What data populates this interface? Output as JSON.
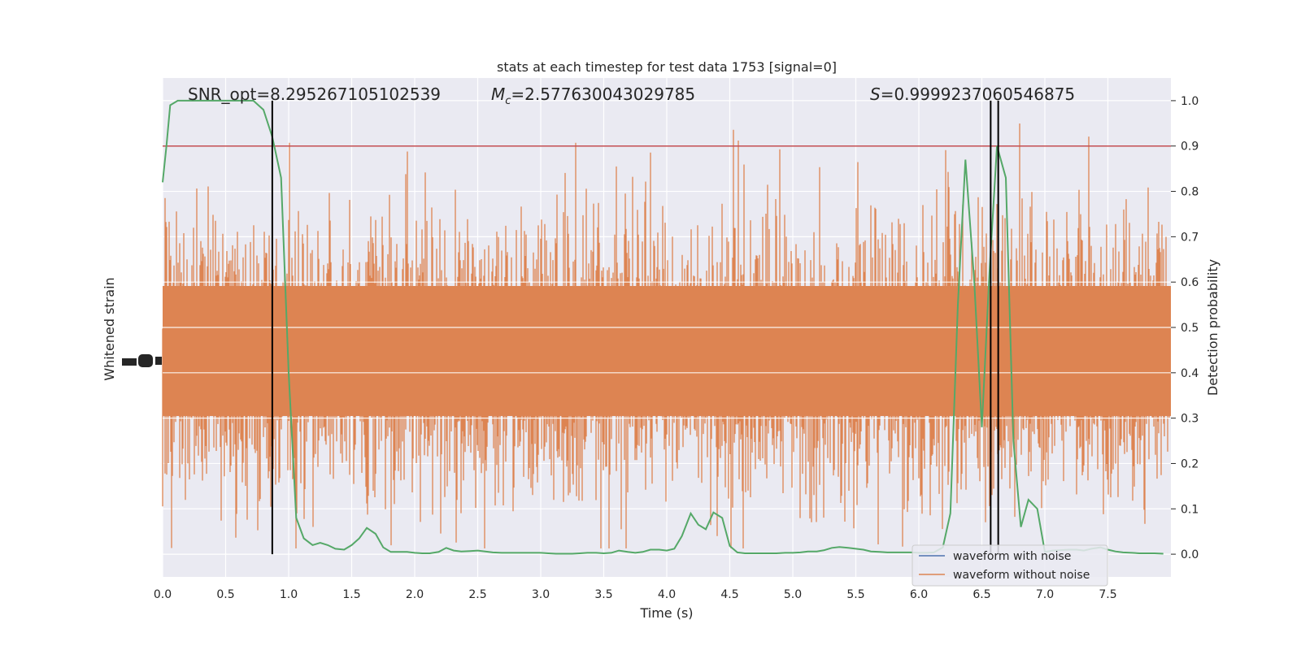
{
  "chart_data": {
    "type": "line",
    "title": "stats at each timestep for test data 1753 [signal=0]",
    "xlabel": "Time (s)",
    "ylabel_left": "Whitened strain",
    "ylabel_right": "Detection probability",
    "xlim": [
      0.0,
      8.0
    ],
    "ylim_right": [
      -0.05,
      1.05
    ],
    "x_ticks": [
      "0.0",
      "0.5",
      "1.0",
      "1.5",
      "2.0",
      "2.5",
      "3.0",
      "3.5",
      "4.0",
      "4.5",
      "5.0",
      "5.5",
      "6.0",
      "6.5",
      "7.0",
      "7.5"
    ],
    "y_ticks_right": [
      "0.0",
      "0.1",
      "0.2",
      "0.3",
      "0.4",
      "0.5",
      "0.6",
      "0.7",
      "0.8",
      "0.9",
      "1.0"
    ],
    "grid": true,
    "legend_position": "lower-right",
    "annotations": {
      "snr": "SNR_opt=8.295267105102539",
      "mc_symbol": "M",
      "mc_subscript": "c",
      "mc_value": "=2.577630043029785",
      "s_symbol": "S",
      "s_value": "=0.9999237060546875"
    },
    "threshold": 0.9,
    "vertical_lines_x": [
      0.87,
      6.57,
      6.63
    ],
    "series": [
      {
        "name": "waveform with noise",
        "color": "#4c72b0"
      },
      {
        "name": "waveform without noise",
        "color": "#dd8452"
      },
      {
        "name": "",
        "color": "#55a868",
        "x": [
          0.0,
          0.03,
          0.06,
          0.12,
          0.18,
          0.25,
          0.35,
          0.45,
          0.55,
          0.65,
          0.72,
          0.8,
          0.87,
          0.94,
          1.0,
          1.06,
          1.12,
          1.19,
          1.25,
          1.31,
          1.37,
          1.44,
          1.5,
          1.56,
          1.62,
          1.69,
          1.75,
          1.81,
          1.87,
          1.94,
          2.0,
          2.06,
          2.12,
          2.19,
          2.25,
          2.31,
          2.37,
          2.44,
          2.5,
          2.56,
          2.62,
          2.69,
          2.75,
          2.81,
          2.87,
          2.94,
          3.0,
          3.06,
          3.12,
          3.19,
          3.25,
          3.31,
          3.37,
          3.44,
          3.5,
          3.56,
          3.62,
          3.69,
          3.75,
          3.81,
          3.87,
          3.94,
          4.0,
          4.06,
          4.12,
          4.19,
          4.25,
          4.31,
          4.37,
          4.44,
          4.5,
          4.56,
          4.62,
          4.69,
          4.75,
          4.81,
          4.87,
          4.94,
          5.0,
          5.06,
          5.12,
          5.19,
          5.25,
          5.31,
          5.37,
          5.44,
          5.5,
          5.56,
          5.62,
          5.69,
          5.75,
          5.81,
          5.87,
          5.94,
          6.0,
          6.06,
          6.12,
          6.19,
          6.25,
          6.31,
          6.37,
          6.44,
          6.5,
          6.56,
          6.62,
          6.69,
          6.75,
          6.81,
          6.87,
          6.94,
          7.0,
          7.06,
          7.12,
          7.19,
          7.25,
          7.31,
          7.37,
          7.44,
          7.5,
          7.56,
          7.62,
          7.69,
          7.75,
          7.81,
          7.87,
          7.94
        ],
        "y": [
          0.82,
          0.9,
          0.99,
          1.0,
          1.0,
          1.0,
          1.0,
          1.0,
          1.0,
          1.0,
          1.0,
          0.98,
          0.92,
          0.83,
          0.4,
          0.08,
          0.035,
          0.02,
          0.025,
          0.02,
          0.012,
          0.01,
          0.02,
          0.035,
          0.058,
          0.045,
          0.015,
          0.005,
          0.005,
          0.005,
          0.003,
          0.002,
          0.002,
          0.005,
          0.014,
          0.008,
          0.006,
          0.007,
          0.008,
          0.006,
          0.004,
          0.003,
          0.003,
          0.003,
          0.003,
          0.003,
          0.003,
          0.002,
          0.001,
          0.001,
          0.001,
          0.002,
          0.003,
          0.003,
          0.002,
          0.003,
          0.008,
          0.005,
          0.003,
          0.005,
          0.01,
          0.01,
          0.008,
          0.012,
          0.04,
          0.09,
          0.065,
          0.055,
          0.092,
          0.08,
          0.018,
          0.004,
          0.002,
          0.002,
          0.002,
          0.002,
          0.002,
          0.003,
          0.003,
          0.004,
          0.006,
          0.006,
          0.009,
          0.014,
          0.016,
          0.014,
          0.012,
          0.01,
          0.006,
          0.005,
          0.004,
          0.004,
          0.004,
          0.004,
          0.003,
          0.003,
          0.004,
          0.015,
          0.09,
          0.55,
          0.87,
          0.6,
          0.28,
          0.62,
          0.9,
          0.83,
          0.25,
          0.06,
          0.12,
          0.1,
          0.005,
          0.008,
          0.009,
          0.01,
          0.01,
          0.008,
          0.012,
          0.015,
          0.01,
          0.006,
          0.004,
          0.003,
          0.002,
          0.002,
          0.002,
          0.001
        ]
      }
    ]
  }
}
